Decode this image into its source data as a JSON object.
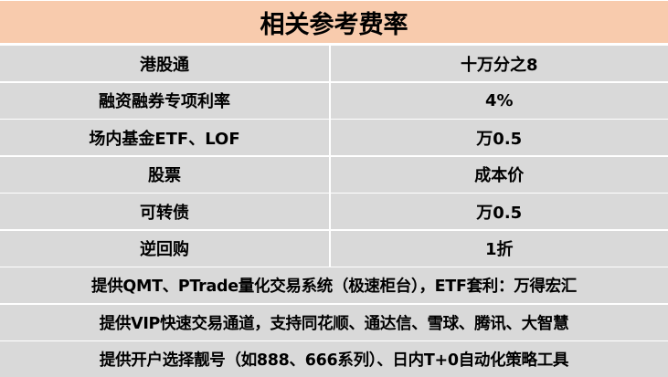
{
  "title": "相关参考费率",
  "rows": [
    {
      "item": "港股通",
      "rate": "十万分之8"
    },
    {
      "item": "融资融券专项利率",
      "rate": "4%"
    },
    {
      "item": "场内基金ETF、LOF",
      "rate": "万0.5"
    },
    {
      "item": "股票",
      "rate": "成本价"
    },
    {
      "item": "可转债",
      "rate": "万0.5"
    },
    {
      "item": "逆回购",
      "rate": "1折"
    }
  ],
  "notes": [
    "提供QMT、PTrade量化交易系统（极速柜台），ETF套利：万得宏汇",
    "提供VIP快速交易通道，支持同花顺、通达信、雪球、腾讯、大智慧",
    "提供开户选择靓号（如888、666系列）、日内T+0自动化策略工具"
  ],
  "colors": {
    "header": "#F8CBAD",
    "cell": "#D9D9D9"
  }
}
